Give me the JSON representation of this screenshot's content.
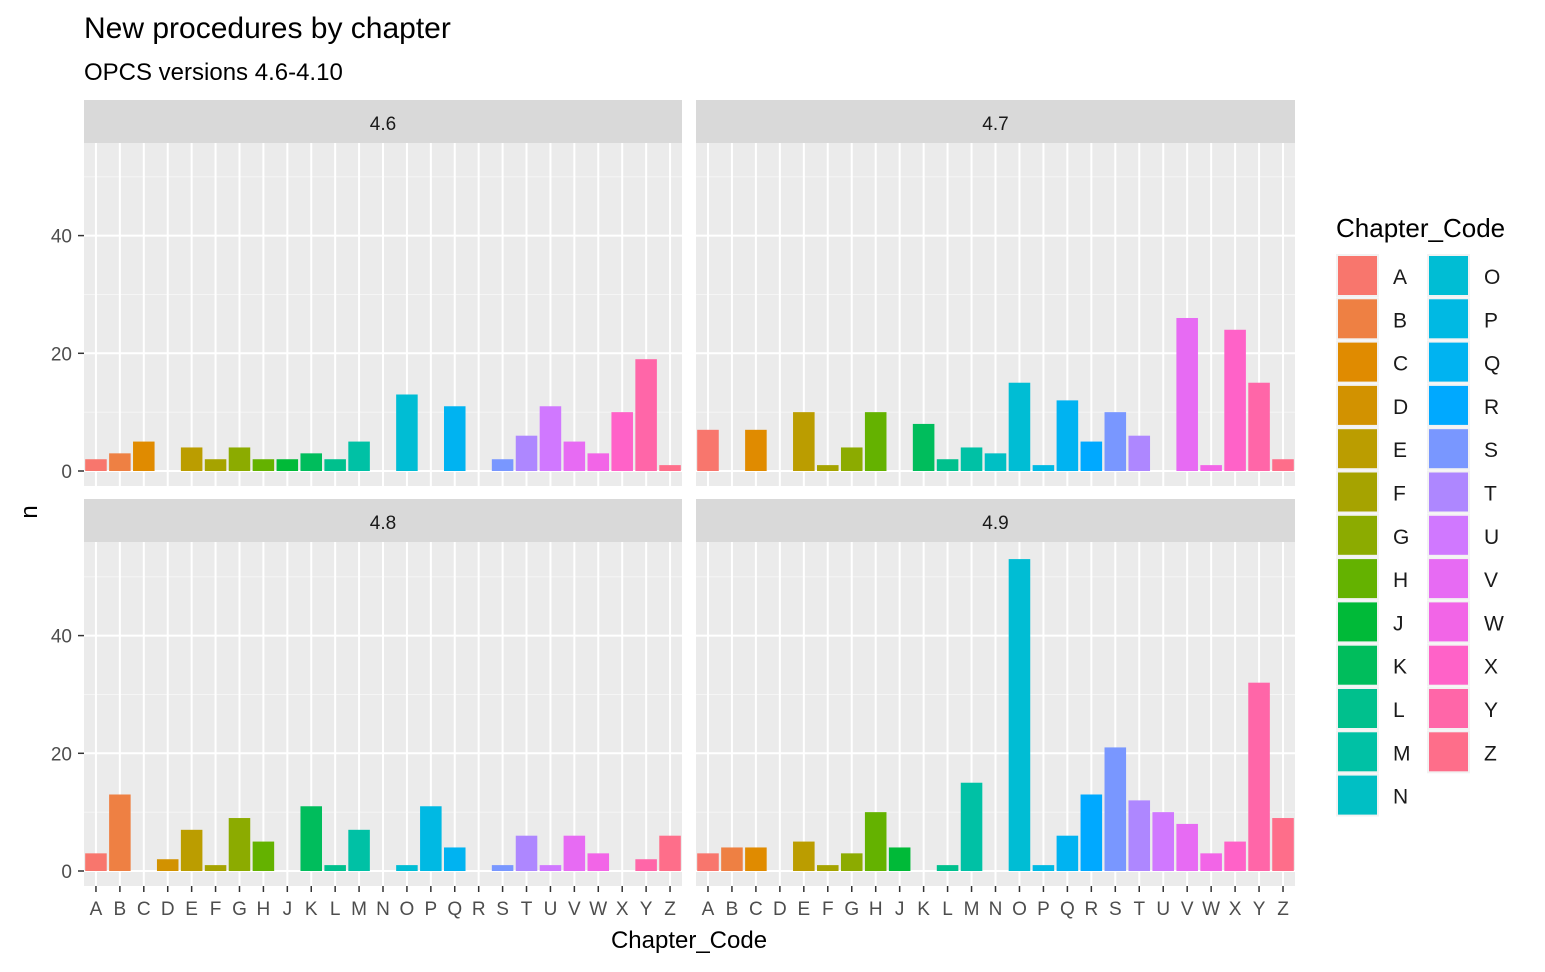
{
  "chart_data": {
    "type": "bar",
    "title": "New procedures by chapter",
    "subtitle": "OPCS versions 4.6-4.10",
    "xlabel": "Chapter_Code",
    "ylabel": "n",
    "ylim": [
      0,
      55
    ],
    "yticks": [
      "0",
      "20",
      "40"
    ],
    "ytick_values": [
      0,
      20,
      40
    ],
    "grid": true,
    "legend_position": "right",
    "legend": {
      "title": "Chapter_Code",
      "entries": [
        "A",
        "B",
        "C",
        "D",
        "E",
        "F",
        "G",
        "H",
        "J",
        "K",
        "L",
        "M",
        "N",
        "O",
        "P",
        "Q",
        "R",
        "S",
        "T",
        "U",
        "V",
        "W",
        "X",
        "Y",
        "Z"
      ],
      "colors": [
        "#F8766D",
        "#EA8331",
        "#D89000",
        "#C09B00",
        "#A3A500",
        "#7CAE00",
        "#39B600",
        "#00BB4E",
        "#00BF7D",
        "#00C1A3",
        "#00BFC4",
        "#00BAE0",
        "#00B0F6",
        "#35A2FF",
        "#9590FF",
        "#C77CFF",
        "#E76BF3",
        "#FA62DB",
        "#FF62BC",
        "#FF6C91",
        "#00BE67",
        "#00BF7D",
        "#00C0AF",
        "#00BCD8",
        "#F8766D"
      ]
    },
    "categories": [
      "A",
      "B",
      "C",
      "D",
      "E",
      "F",
      "G",
      "H",
      "J",
      "K",
      "L",
      "M",
      "N",
      "O",
      "P",
      "Q",
      "R",
      "S",
      "T",
      "U",
      "V",
      "W",
      "X",
      "Y",
      "Z"
    ],
    "category_colors": [
      "#F8766D",
      "#EE8043",
      "#E08B00",
      "#D29200",
      "#BB9D00",
      "#A6A300",
      "#8CAB00",
      "#64B200",
      "#00BA38",
      "#00BD5C",
      "#00C08D",
      "#00C1A5",
      "#00BFC4",
      "#00BDD4",
      "#00B9E3",
      "#00B3F1",
      "#00A9FF",
      "#7997FF",
      "#AE87FF",
      "#D078FF",
      "#E76BF3",
      "#F265E7",
      "#FF62C8",
      "#FF66A8",
      "#FE6E8A"
    ],
    "panels": [
      {
        "label": "4.6",
        "values": [
          2,
          3,
          5,
          0,
          4,
          2,
          4,
          2,
          2,
          3,
          2,
          5,
          0,
          13,
          0,
          11,
          0,
          2,
          6,
          11,
          5,
          3,
          10,
          19,
          1
        ]
      },
      {
        "label": "4.7",
        "values": [
          7,
          0,
          7,
          0,
          10,
          1,
          4,
          10,
          0,
          8,
          2,
          4,
          3,
          15,
          1,
          12,
          5,
          10,
          6,
          0,
          26,
          1,
          24,
          15,
          2
        ]
      },
      {
        "label": "4.8",
        "values": [
          3,
          13,
          0,
          2,
          7,
          1,
          9,
          5,
          0,
          11,
          1,
          7,
          0,
          1,
          11,
          4,
          0,
          1,
          6,
          1,
          6,
          3,
          0,
          2,
          6
        ]
      },
      {
        "label": "4.9",
        "values": [
          3,
          4,
          4,
          0,
          5,
          1,
          3,
          10,
          4,
          0,
          1,
          15,
          0,
          53,
          1,
          6,
          13,
          21,
          12,
          10,
          8,
          3,
          5,
          32,
          9
        ]
      }
    ]
  }
}
